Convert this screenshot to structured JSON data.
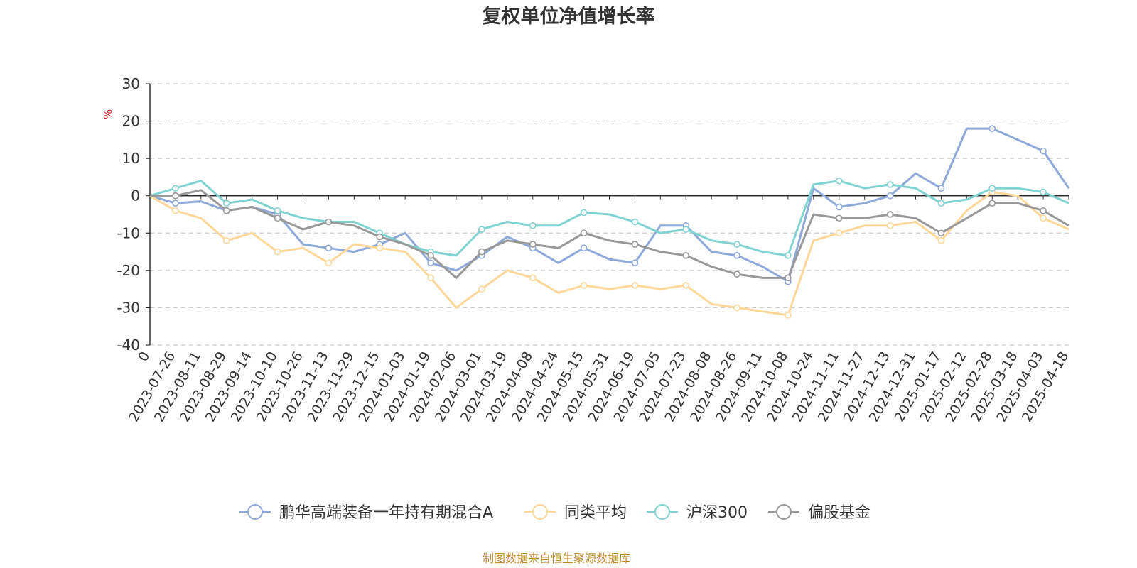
{
  "chart_data": {
    "type": "line",
    "title": "复权单位净值增长率",
    "ylabel": "%",
    "ylim": [
      -40,
      30
    ],
    "yticks": [
      "30",
      "20",
      "10",
      "0",
      "-10",
      "-20",
      "-30",
      "-40"
    ],
    "x_start_label": "0",
    "categories": [
      "2023-07-26",
      "2023-08-11",
      "2023-08-29",
      "2023-09-14",
      "2023-10-10",
      "2023-10-26",
      "2023-11-13",
      "2023-11-29",
      "2023-12-15",
      "2024-01-03",
      "2024-01-19",
      "2024-02-06",
      "2024-03-01",
      "2024-03-19",
      "2024-04-08",
      "2024-04-24",
      "2024-05-15",
      "2024-05-31",
      "2024-06-19",
      "2024-07-05",
      "2024-07-23",
      "2024-08-08",
      "2024-08-26",
      "2024-09-11",
      "2024-10-08",
      "2024-10-24",
      "2024-11-11",
      "2024-11-27",
      "2024-12-13",
      "2024-12-31",
      "2025-01-17",
      "2025-02-12",
      "2025-02-28",
      "2025-03-18",
      "2025-04-03",
      "2025-04-18"
    ],
    "grid": true,
    "legend_position": "bottom",
    "series": [
      {
        "name": "鹏华高端装备一年持有期混合A",
        "color": "#8ea9d8",
        "values": [
          -2,
          -1.5,
          -4,
          -3,
          -5,
          -13,
          -14,
          -15,
          -13,
          -10,
          -18,
          -20,
          -16,
          -11,
          -14,
          -18,
          -14,
          -17,
          -18,
          -8,
          -8,
          -15,
          -16,
          -19,
          -23,
          2,
          -3,
          -2,
          0,
          6,
          2,
          18,
          18,
          15,
          12,
          2
        ]
      },
      {
        "name": "同类平均",
        "color": "#ffd899",
        "values": [
          -4,
          -6,
          -12,
          -10,
          -15,
          -14,
          -18,
          -13,
          -14,
          -15,
          -22,
          -30,
          -25,
          -20,
          -22,
          -26,
          -24,
          -25,
          -24,
          -25,
          -24,
          -29,
          -30,
          -31,
          -32,
          -12,
          -10,
          -8,
          -8,
          -7,
          -12,
          -4,
          1,
          0,
          -6,
          -9
        ]
      },
      {
        "name": "沪深300",
        "color": "#7fd3d1",
        "values": [
          2,
          4,
          -2,
          -1,
          -4,
          -6,
          -7,
          -7,
          -10,
          -13,
          -15,
          -16,
          -9,
          -7,
          -8,
          -8,
          -4.5,
          -5,
          -7,
          -10,
          -9,
          -12,
          -13,
          -15,
          -16,
          3,
          4,
          2,
          3,
          2,
          -2,
          -1,
          2,
          2,
          1,
          -2
        ]
      },
      {
        "name": "偏股基金",
        "color": "#999999",
        "values": [
          0,
          1.5,
          -4,
          -3,
          -6,
          -9,
          -7,
          -8,
          -11,
          -13,
          -16,
          -22,
          -15,
          -12,
          -13,
          -14,
          -10,
          -12,
          -13,
          -15,
          -16,
          -19,
          -21,
          -22,
          -22,
          -5,
          -6,
          -6,
          -5,
          -6,
          -10,
          -6,
          -2,
          -2,
          -4,
          -8
        ]
      }
    ]
  },
  "source_note": "制图数据来自恒生聚源数据库"
}
